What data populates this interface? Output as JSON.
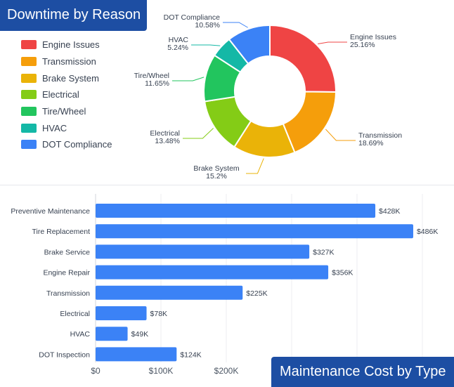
{
  "charts": {
    "donut": {
      "title": "Downtime by Reason"
    },
    "bar": {
      "title": "Maintenance Cost by Type"
    }
  },
  "chart_data": [
    {
      "type": "pie",
      "title": "Downtime by Reason",
      "donut": true,
      "legend_position": "left",
      "categories": [
        "Engine Issues",
        "Transmission",
        "Brake System",
        "Electrical",
        "Tire/Wheel",
        "HVAC",
        "DOT Compliance"
      ],
      "values": [
        25.16,
        18.69,
        15.2,
        13.48,
        11.65,
        5.24,
        10.58
      ],
      "value_labels": [
        "25.16%",
        "18.69%",
        "15.2%",
        "13.48%",
        "11.65%",
        "5.24%",
        "10.58%"
      ],
      "colors": [
        "#ef4444",
        "#f59e0b",
        "#eab308",
        "#84cc16",
        "#22c55e",
        "#14b8a6",
        "#3b82f6"
      ]
    },
    {
      "type": "bar",
      "orientation": "horizontal",
      "title": "Maintenance Cost by Type",
      "categories": [
        "Preventive Maintenance",
        "Tire Replacement",
        "Brake Service",
        "Engine Repair",
        "Transmission",
        "Electrical",
        "HVAC",
        "DOT Inspection"
      ],
      "values": [
        428,
        486,
        327,
        356,
        225,
        78,
        49,
        124
      ],
      "value_labels": [
        "$428K",
        "$486K",
        "$327K",
        "$356K",
        "$225K",
        "$78K",
        "$49K",
        "$124K"
      ],
      "x_ticks": [
        0,
        100,
        200
      ],
      "x_tick_labels": [
        "$0",
        "$100K",
        "$200K"
      ],
      "xlim": [
        0,
        500
      ],
      "units": "thousand USD",
      "bar_color": "#3b82f6",
      "grid": true
    }
  ]
}
